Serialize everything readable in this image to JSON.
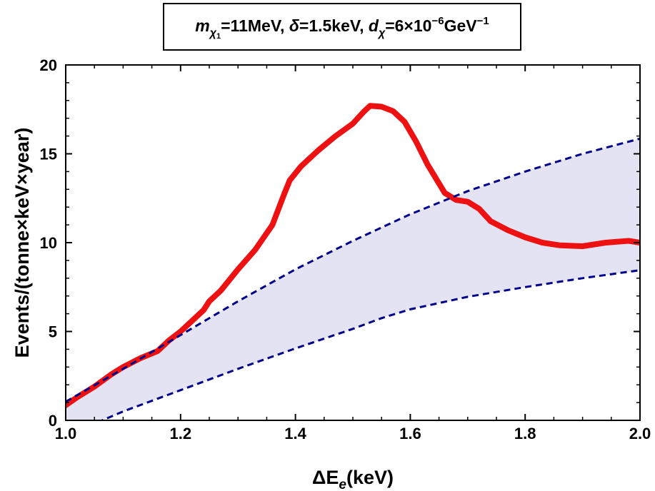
{
  "chart_data": {
    "type": "line",
    "title": {
      "m_label": "m",
      "m_sub": "χ",
      "m_subsub": "1",
      "m_value": "=11MeV,",
      "delta_label": "δ",
      "delta_value": "=1.5keV,",
      "d_label": "d",
      "d_sub": "χ",
      "d_value_pre": "=6×10",
      "d_exp": "−6",
      "d_unit": "GeV",
      "d_unit_exp": "−1"
    },
    "xlabel": {
      "main": "ΔE",
      "sub": "e",
      "tail": "(keV)"
    },
    "ylabel": "Events/(tonne×keV×year)",
    "xlim": [
      1.0,
      2.0
    ],
    "ylim": [
      0,
      20
    ],
    "x_ticks": [
      "1.0",
      "1.2",
      "1.4",
      "1.6",
      "1.8",
      "2.0"
    ],
    "y_ticks": [
      "0",
      "5",
      "10",
      "15",
      "20"
    ],
    "series": [
      {
        "style": "solid",
        "color": "#ee1111",
        "x": [
          1.0,
          1.02,
          1.05,
          1.08,
          1.1,
          1.13,
          1.16,
          1.18,
          1.2,
          1.22,
          1.24,
          1.25,
          1.27,
          1.3,
          1.33,
          1.36,
          1.38,
          1.39,
          1.41,
          1.44,
          1.47,
          1.5,
          1.52,
          1.53,
          1.55,
          1.57,
          1.59,
          1.61,
          1.63,
          1.66,
          1.68,
          1.7,
          1.72,
          1.74,
          1.77,
          1.8,
          1.83,
          1.86,
          1.9,
          1.94,
          1.98,
          2.0
        ],
        "y": [
          0.85,
          1.3,
          1.9,
          2.6,
          3.0,
          3.5,
          3.9,
          4.5,
          5.0,
          5.6,
          6.2,
          6.7,
          7.3,
          8.5,
          9.6,
          11.0,
          12.7,
          13.5,
          14.3,
          15.2,
          16.0,
          16.7,
          17.4,
          17.7,
          17.65,
          17.4,
          16.8,
          15.7,
          14.4,
          12.8,
          12.4,
          12.3,
          11.9,
          11.2,
          10.7,
          10.3,
          10.0,
          9.85,
          9.8,
          10.0,
          10.1,
          10.0
        ]
      },
      {
        "style": "dashed",
        "color": "#00008b",
        "x": [
          1.0,
          1.1,
          1.2,
          1.3,
          1.4,
          1.5,
          1.55,
          1.6,
          1.7,
          1.8,
          1.9,
          2.0
        ],
        "y": [
          1.05,
          2.9,
          4.8,
          6.7,
          8.5,
          10.1,
          10.85,
          11.6,
          12.9,
          14.0,
          15.0,
          15.85
        ]
      },
      {
        "style": "dashed",
        "color": "#00008b",
        "x": [
          1.0,
          1.06,
          1.1,
          1.2,
          1.3,
          1.4,
          1.5,
          1.55,
          1.6,
          1.7,
          1.8,
          1.9,
          2.0
        ],
        "y": [
          -0.5,
          -0.05,
          0.5,
          1.7,
          2.9,
          4.05,
          5.15,
          5.75,
          6.25,
          6.95,
          7.5,
          8.0,
          8.45
        ]
      }
    ],
    "band": {
      "between": [
        1,
        2
      ],
      "fill": "#e3e3f3"
    },
    "grid": false
  }
}
